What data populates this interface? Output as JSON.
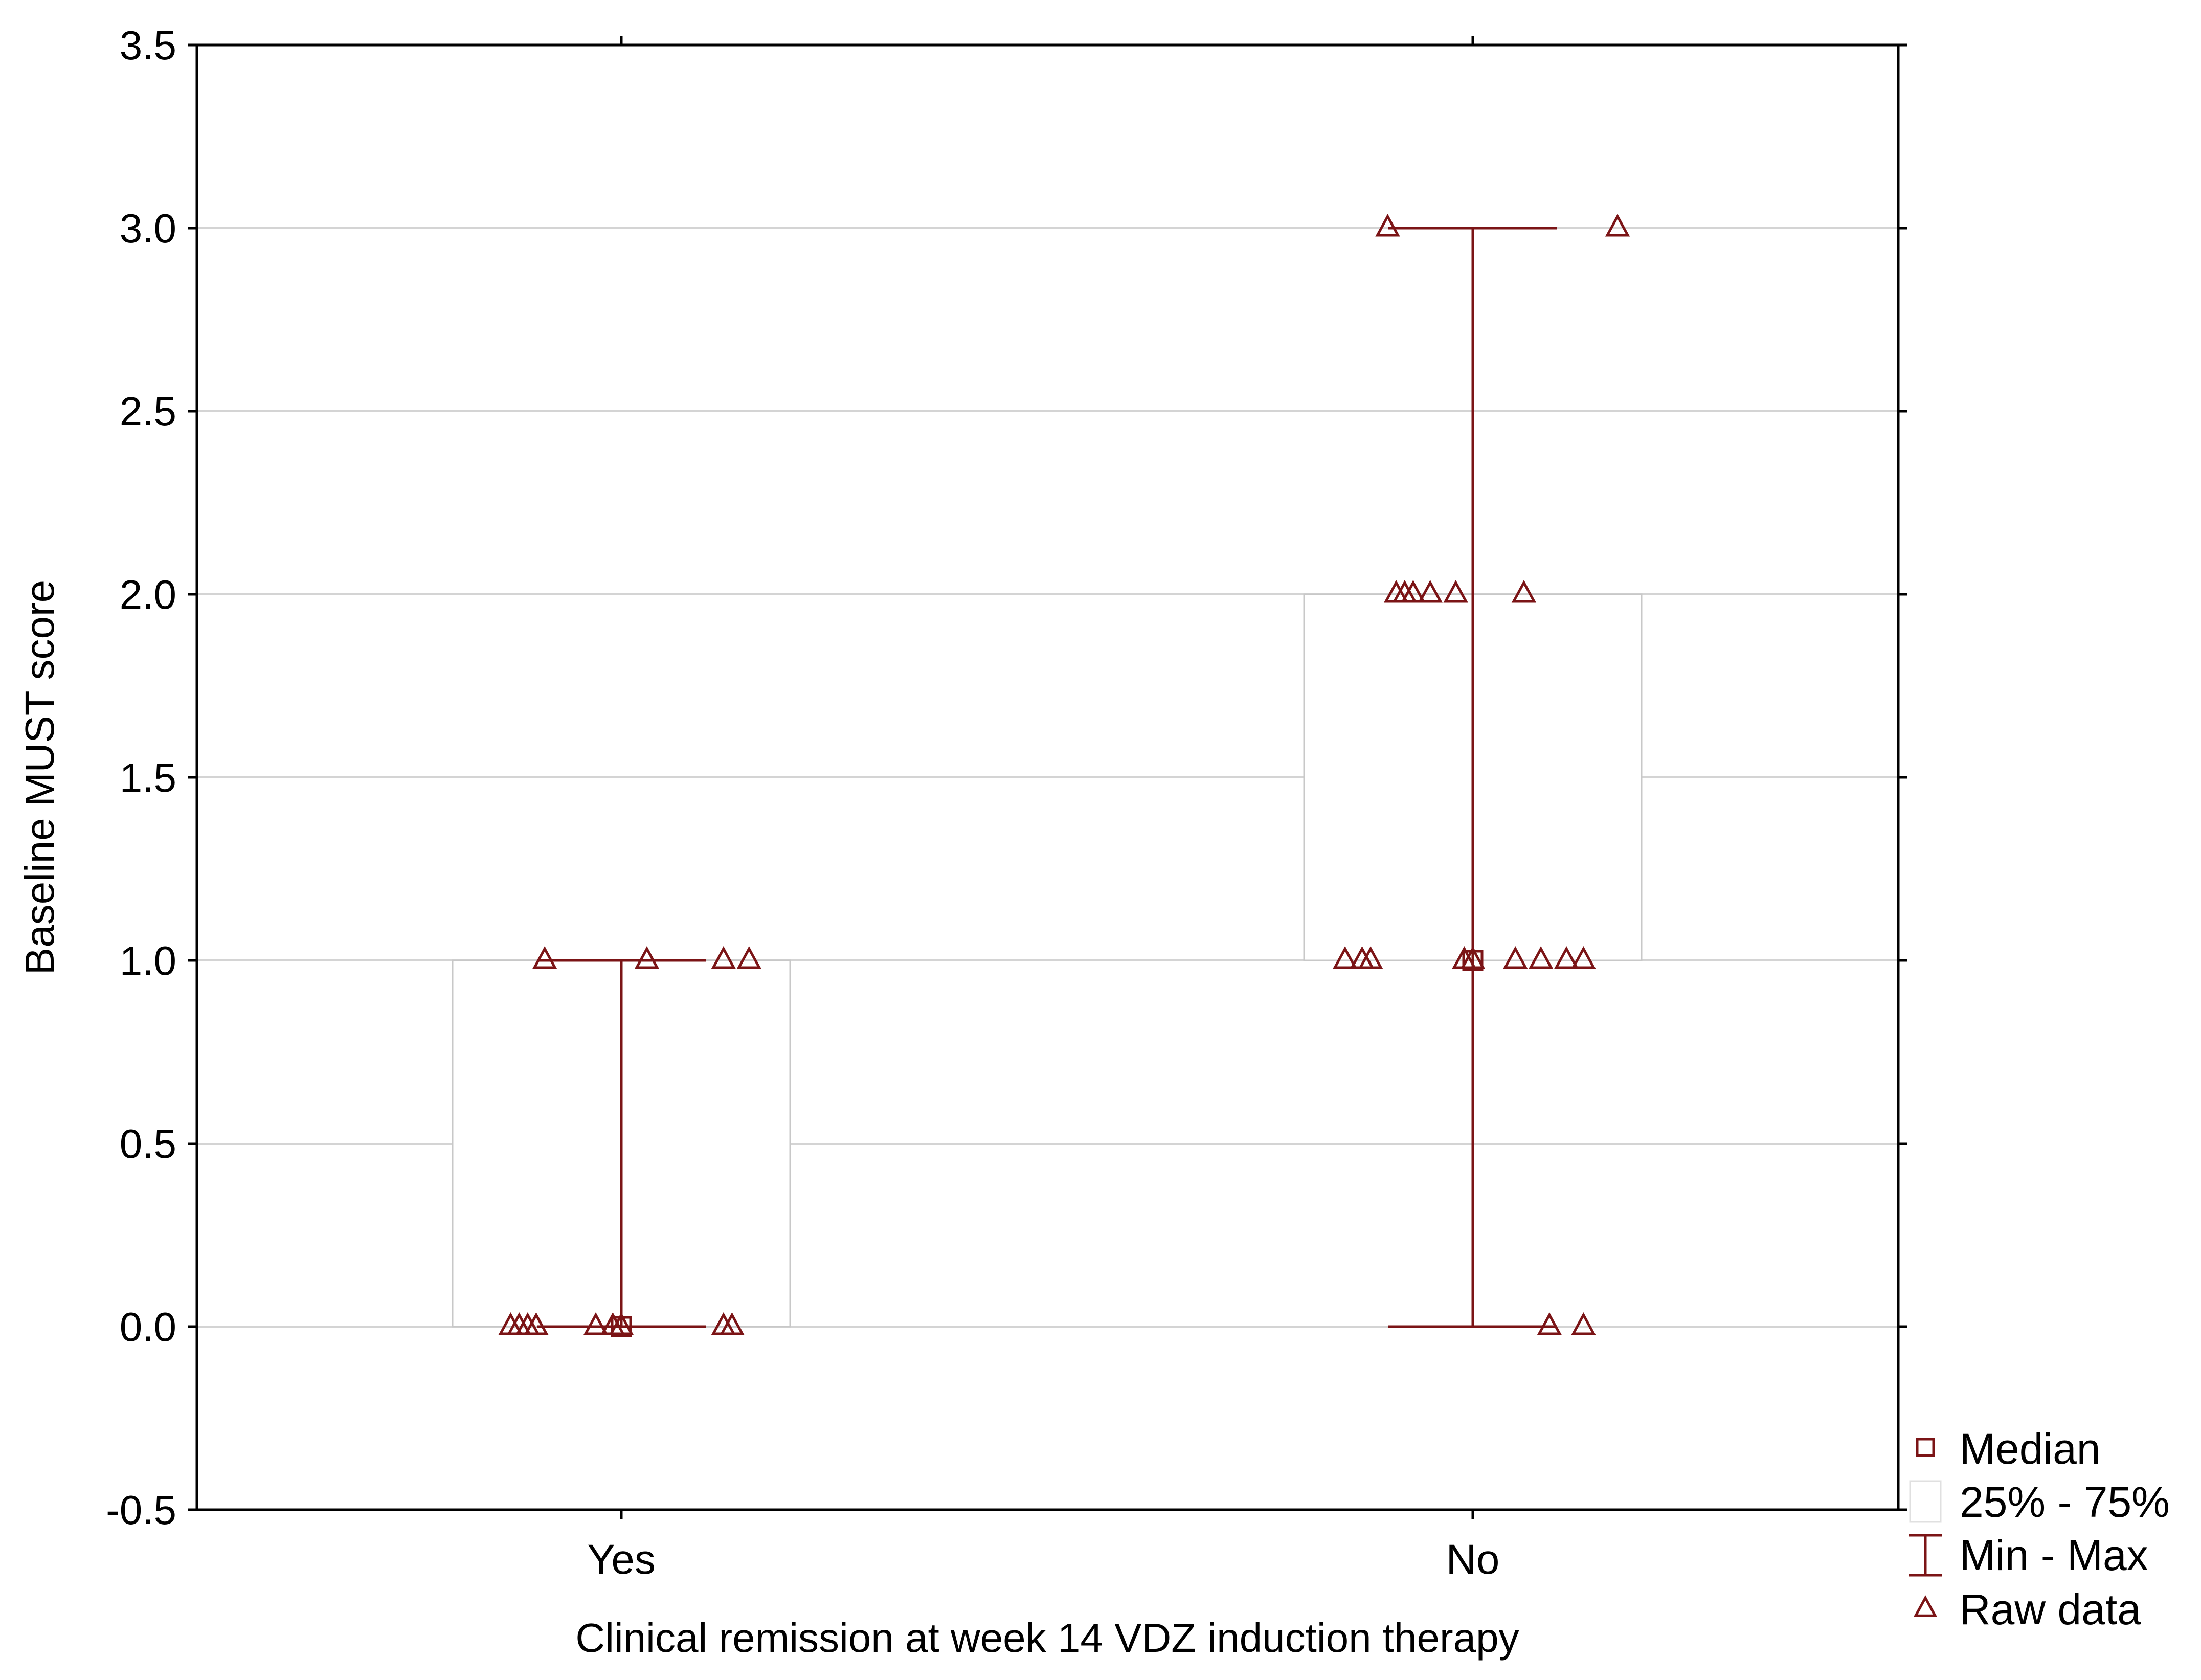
{
  "chart_data": {
    "type": "box",
    "xlabel": "Clinical remission at week 14 VDZ induction therapy",
    "ylabel": "Baseline MUST score",
    "ylim": [
      -0.5,
      3.5
    ],
    "yticks": [
      -0.5,
      0.0,
      0.5,
      1.0,
      1.5,
      2.0,
      2.5,
      3.0,
      3.5
    ],
    "ytick_labels": [
      "-0.5",
      "0.0",
      "0.5",
      "1.0",
      "1.5",
      "2.0",
      "2.5",
      "3.0",
      "3.5"
    ],
    "grid": true,
    "legend_position": "right-bottom",
    "categories": [
      "Yes",
      "No"
    ],
    "groups": [
      {
        "category": "Yes",
        "median": 0,
        "q1": 0,
        "q3": 1,
        "min": 0,
        "max": 1,
        "raw_points": [
          {
            "x_offset": -0.09,
            "y": 1
          },
          {
            "x_offset": 0.03,
            "y": 1
          },
          {
            "x_offset": 0.12,
            "y": 1
          },
          {
            "x_offset": 0.15,
            "y": 1
          },
          {
            "x_offset": -0.13,
            "y": 0
          },
          {
            "x_offset": -0.12,
            "y": 0
          },
          {
            "x_offset": -0.11,
            "y": 0
          },
          {
            "x_offset": -0.1,
            "y": 0
          },
          {
            "x_offset": -0.03,
            "y": 0
          },
          {
            "x_offset": -0.01,
            "y": 0
          },
          {
            "x_offset": 0.0,
            "y": 0
          },
          {
            "x_offset": 0.12,
            "y": 0
          },
          {
            "x_offset": 0.13,
            "y": 0
          }
        ]
      },
      {
        "category": "No",
        "median": 1,
        "q1": 1,
        "q3": 2,
        "min": 0,
        "max": 3,
        "raw_points": [
          {
            "x_offset": -0.1,
            "y": 3
          },
          {
            "x_offset": 0.17,
            "y": 3
          },
          {
            "x_offset": -0.09,
            "y": 2
          },
          {
            "x_offset": -0.08,
            "y": 2
          },
          {
            "x_offset": -0.07,
            "y": 2
          },
          {
            "x_offset": -0.05,
            "y": 2
          },
          {
            "x_offset": -0.02,
            "y": 2
          },
          {
            "x_offset": 0.06,
            "y": 2
          },
          {
            "x_offset": -0.15,
            "y": 1
          },
          {
            "x_offset": -0.13,
            "y": 1
          },
          {
            "x_offset": -0.12,
            "y": 1
          },
          {
            "x_offset": -0.01,
            "y": 1
          },
          {
            "x_offset": 0.0,
            "y": 1
          },
          {
            "x_offset": 0.05,
            "y": 1
          },
          {
            "x_offset": 0.08,
            "y": 1
          },
          {
            "x_offset": 0.11,
            "y": 1
          },
          {
            "x_offset": 0.13,
            "y": 1
          },
          {
            "x_offset": 0.09,
            "y": 0
          },
          {
            "x_offset": 0.13,
            "y": 0
          }
        ]
      }
    ],
    "legend": [
      {
        "key": "median",
        "label": "Median"
      },
      {
        "key": "iqr",
        "label": "25% - 75%"
      },
      {
        "key": "range",
        "label": "Min - Max"
      },
      {
        "key": "raw",
        "label": "Raw data"
      }
    ],
    "colors": {
      "marker": "#7b1416",
      "box_stroke": "#c8c8c8",
      "grid": "#d4d4d4",
      "axis": "#000000"
    }
  }
}
